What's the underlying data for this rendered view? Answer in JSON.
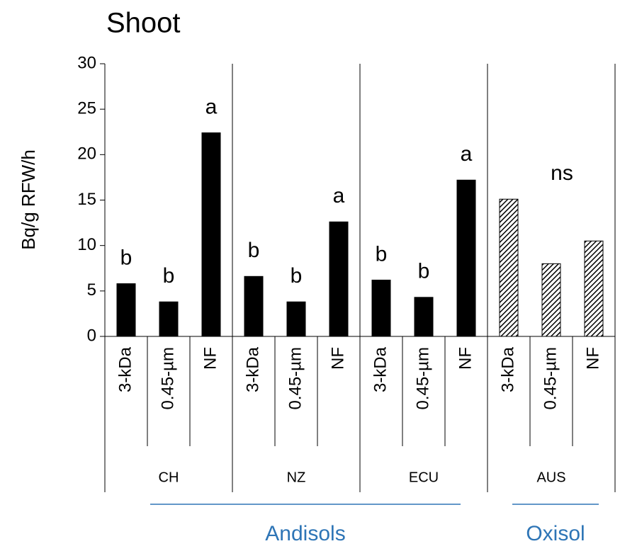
{
  "chart_data": {
    "type": "bar",
    "title": "Shoot",
    "y_label": "Bq/g RFW/h",
    "ylim": [
      0,
      30
    ],
    "yticks": [
      0,
      5,
      10,
      15,
      20,
      25,
      30
    ],
    "groups": [
      {
        "name": "CH",
        "categories": [
          "3-kDa",
          "0.45-µm",
          "NF"
        ],
        "values": [
          5.8,
          3.8,
          22.4
        ],
        "letters": [
          "b",
          "b",
          "a"
        ],
        "color": "#000000",
        "hatched": false
      },
      {
        "name": "NZ",
        "categories": [
          "3-kDa",
          "0.45-µm",
          "NF"
        ],
        "values": [
          6.6,
          3.8,
          12.6
        ],
        "letters": [
          "b",
          "b",
          "a"
        ],
        "color": "#000000",
        "hatched": false
      },
      {
        "name": "ECU",
        "categories": [
          "3-kDa",
          "0.45-µm",
          "NF"
        ],
        "values": [
          6.2,
          4.3,
          17.2
        ],
        "letters": [
          "b",
          "b",
          "a"
        ],
        "color": "#000000",
        "hatched": false
      },
      {
        "name": "AUS",
        "categories": [
          "3-kDa",
          "0.45-µm",
          "NF"
        ],
        "values": [
          15.1,
          8.0,
          10.5
        ],
        "annotation": "ns",
        "color": "#000000",
        "hatched": true
      }
    ],
    "soil_types": [
      {
        "name": "Andisols",
        "color": "#2e75b6"
      },
      {
        "name": "Oxisol",
        "color": "#2e75b6"
      }
    ]
  }
}
